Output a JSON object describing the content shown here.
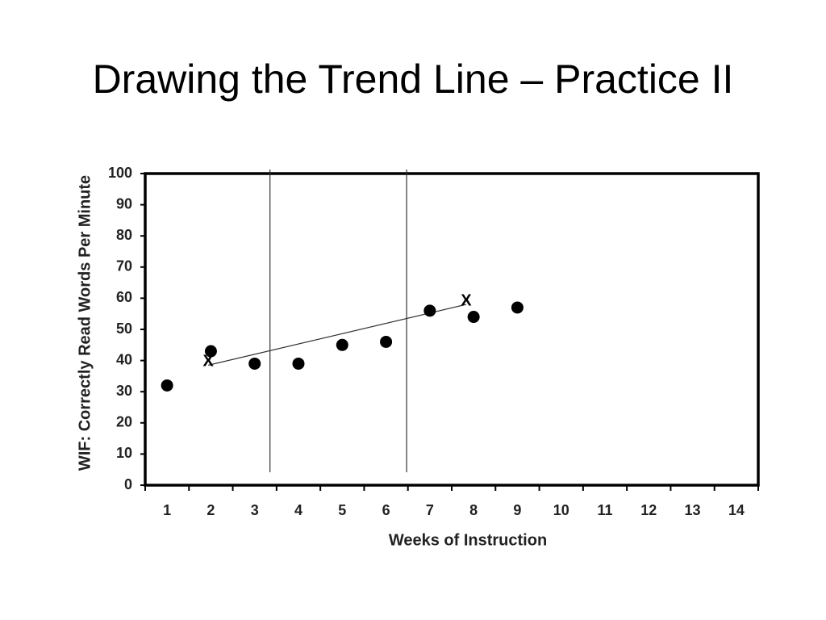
{
  "chart_data": {
    "type": "scatter",
    "title": "Drawing the Trend Line – Practice II",
    "x_label": "Weeks of Instruction",
    "y_label": "WIF: Correctly Read Words Per Minute",
    "x": [
      1,
      2,
      3,
      4,
      5,
      6,
      7,
      8,
      9
    ],
    "values": [
      32,
      43,
      39,
      39,
      45,
      46,
      56,
      54,
      57
    ],
    "color": "#000000",
    "xlim": [
      0.5,
      14.5
    ],
    "xticks": [
      1,
      2,
      3,
      4,
      5,
      6,
      7,
      8,
      9,
      10,
      11,
      12,
      13,
      14
    ],
    "ylim": [
      0,
      100
    ],
    "yticks": [
      0,
      10,
      20,
      30,
      40,
      50,
      60,
      70,
      80,
      90,
      100
    ],
    "phase_lines": [
      3.35,
      6.47
    ],
    "trend_line": {
      "x": [
        1.94,
        7.83
      ],
      "values": [
        38.5,
        58
      ],
      "marker_label": "X"
    }
  }
}
